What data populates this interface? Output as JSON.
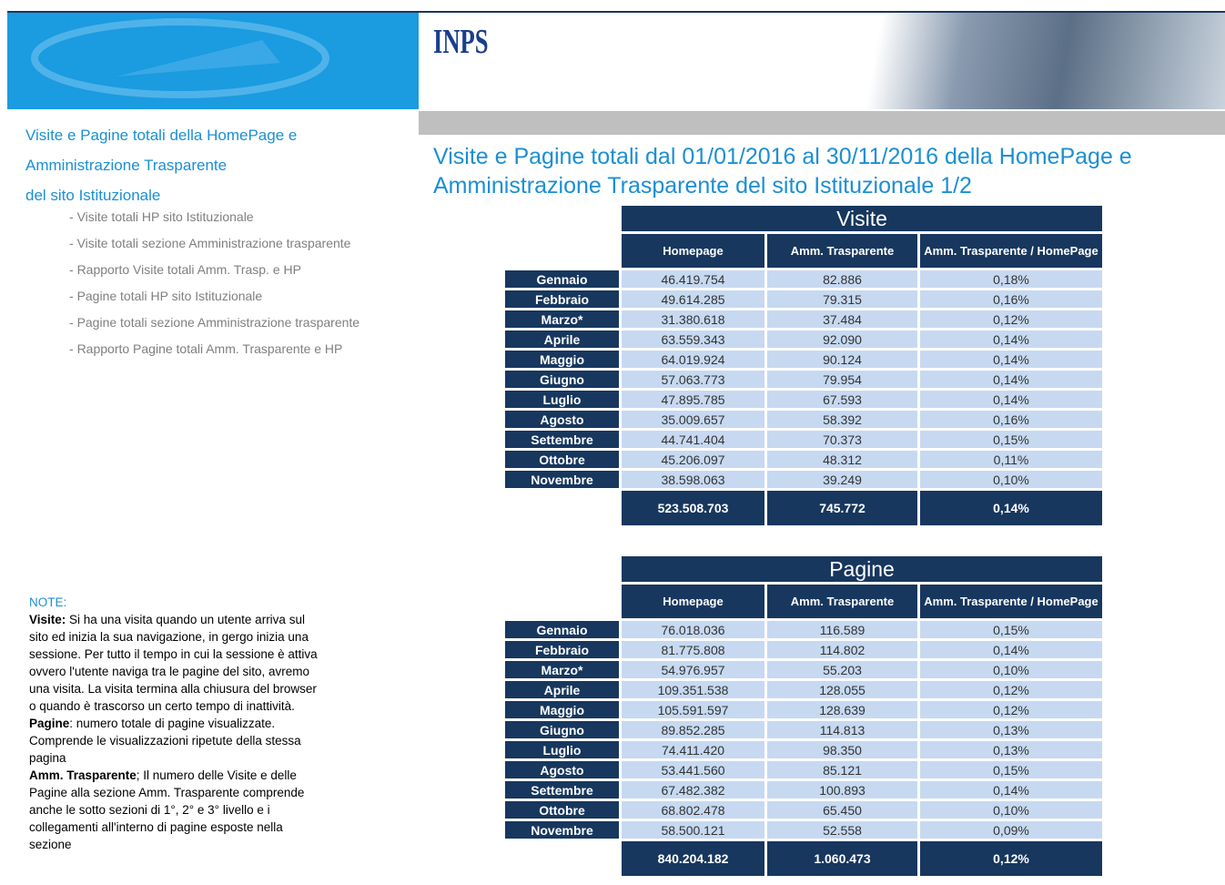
{
  "logo": "INPS",
  "sidebar": {
    "title_lines": [
      "Visite e Pagine totali della HomePage e",
      "Amministrazione Trasparente",
      "del sito Istituzionale"
    ],
    "items": [
      "Visite totali HP sito Istituzionale",
      "Visite totali sezione Amministrazione  trasparente",
      "Rapporto  Visite totali Amm.  Trasp. e HP",
      "Pagine totali HP sito Istituzionale",
      "Pagine totali sezione Amministrazione  trasparente",
      "Rapporto  Pagine totali Amm.  Trasparente  e HP"
    ]
  },
  "title_lines": [
    "Visite e Pagine totali dal 01/01/2016  al 30/11/2016  della HomePage e",
    "Amministrazione Trasparente del sito  Istituzionale 1/2"
  ],
  "tables": [
    {
      "caption": "Visite",
      "headers": [
        "Homepage",
        "Amm. Trasparente",
        "Amm. Trasparente / HomePage"
      ],
      "rows": [
        [
          "Gennaio",
          "46.419.754",
          "82.886",
          "0,18%"
        ],
        [
          "Febbraio",
          "49.614.285",
          "79.315",
          "0,16%"
        ],
        [
          "Marzo*",
          "31.380.618",
          "37.484",
          "0,12%"
        ],
        [
          "Aprile",
          "63.559.343",
          "92.090",
          "0,14%"
        ],
        [
          "Maggio",
          "64.019.924",
          "90.124",
          "0,14%"
        ],
        [
          "Giugno",
          "57.063.773",
          "79.954",
          "0,14%"
        ],
        [
          "Luglio",
          "47.895.785",
          "67.593",
          "0,14%"
        ],
        [
          "Agosto",
          "35.009.657",
          "58.392",
          "0,16%"
        ],
        [
          "Settembre",
          "44.741.404",
          "70.373",
          "0,15%"
        ],
        [
          "Ottobre",
          "45.206.097",
          "48.312",
          "0,11%"
        ],
        [
          "Novembre",
          "38.598.063",
          "39.249",
          "0,10%"
        ]
      ],
      "total": [
        "523.508.703",
        "745.772",
        "0,14%"
      ]
    },
    {
      "caption": "Pagine",
      "headers": [
        "Homepage",
        "Amm. Trasparente",
        "Amm. Trasparente / HomePage"
      ],
      "rows": [
        [
          "Gennaio",
          "76.018.036",
          "116.589",
          "0,15%"
        ],
        [
          "Febbraio",
          "81.775.808",
          "114.802",
          "0,14%"
        ],
        [
          "Marzo*",
          "54.976.957",
          "55.203",
          "0,10%"
        ],
        [
          "Aprile",
          "109.351.538",
          "128.055",
          "0,12%"
        ],
        [
          "Maggio",
          "105.591.597",
          "128.639",
          "0,12%"
        ],
        [
          "Giugno",
          "89.852.285",
          "114.813",
          "0,13%"
        ],
        [
          "Luglio",
          "74.411.420",
          "98.350",
          "0,13%"
        ],
        [
          "Agosto",
          "53.441.560",
          "85.121",
          "0,15%"
        ],
        [
          "Settembre",
          "67.482.382",
          "100.893",
          "0,14%"
        ],
        [
          "Ottobre",
          "68.802.478",
          "65.450",
          "0,10%"
        ],
        [
          "Novembre",
          "58.500.121",
          "52.558",
          "0,09%"
        ]
      ],
      "total": [
        "840.204.182",
        "1.060.473",
        "0,12%"
      ]
    }
  ],
  "notes": {
    "label": "NOTE:",
    "paragraphs": [
      {
        "term": "Visite:",
        "text": " Si ha una visita quando un utente arriva sul sito ed inizia la sua navigazione, in gergo inizia una sessione. Per tutto il tempo in cui la sessione è attiva ovvero l'utente naviga tra le pagine del sito, avremo una visita. La visita termina alla chiusura del browser o quando è trascorso un certo tempo di inattività."
      },
      {
        "term": "Pagine",
        "text": ": numero totale di pagine visualizzate.  Comprende le visualizzazioni ripetute della stessa pagina"
      },
      {
        "term": "Amm. Trasparente",
        "text": "; Il numero delle Visite e delle Pagine alla sezione Amm. Trasparente comprende anche le sotto sezioni di 1°, 2° e 3° livello e i collegamenti all'interno di pagine esposte nella sezione"
      }
    ]
  }
}
